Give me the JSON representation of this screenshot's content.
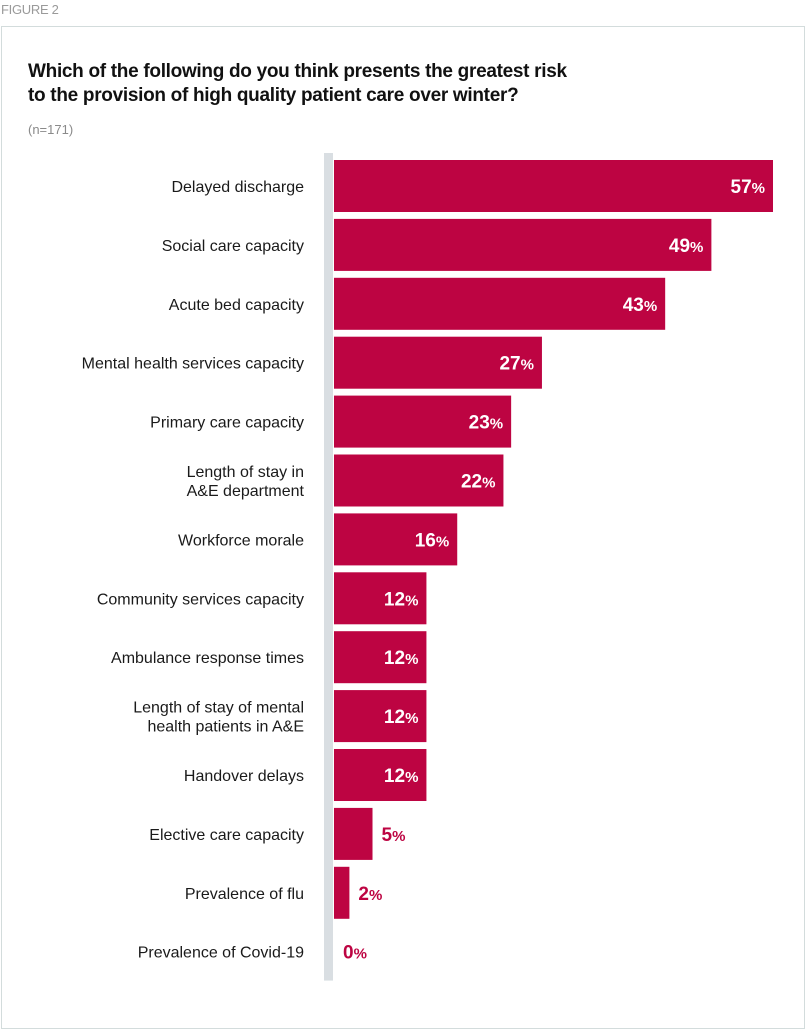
{
  "figure_label": "FIGURE 2",
  "chart_data": {
    "type": "bar",
    "orientation": "horizontal",
    "title": "Which of the following do you think presents the greatest risk to the provision of high quality patient care over winter?",
    "title_lines": [
      "Which of the following do you think presents the greatest risk",
      "to the provision of high quality patient care over winter?"
    ],
    "subtitle": "(n=171)",
    "xlabel": "",
    "ylabel": "",
    "xlim": [
      0,
      60
    ],
    "grid": false,
    "legend": "none",
    "bar_color": "#bd0442",
    "inside_label_color": "#ffffff",
    "outside_label_color": "#bd0442",
    "axis_color": "#d9dee2",
    "unit": "%",
    "categories": [
      [
        "Delayed discharge"
      ],
      [
        "Social care capacity"
      ],
      [
        "Acute bed capacity"
      ],
      [
        "Mental health services capacity"
      ],
      [
        "Primary care capacity"
      ],
      [
        "Length of stay in",
        "A&E department"
      ],
      [
        "Workforce morale"
      ],
      [
        "Community services capacity"
      ],
      [
        "Ambulance response times"
      ],
      [
        "Length of stay of mental",
        "health patients in A&E"
      ],
      [
        "Handover delays"
      ],
      [
        "Elective care capacity"
      ],
      [
        "Prevalence of flu"
      ],
      [
        "Prevalence of Covid-19"
      ]
    ],
    "values": [
      57,
      49,
      43,
      27,
      23,
      22,
      16,
      12,
      12,
      12,
      12,
      5,
      2,
      0
    ]
  }
}
